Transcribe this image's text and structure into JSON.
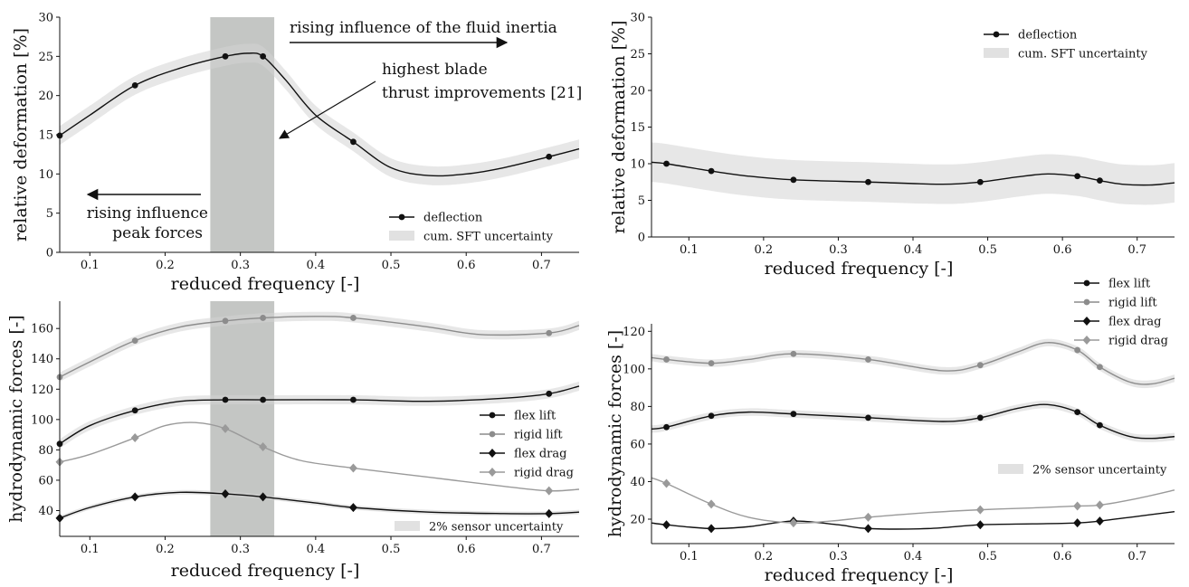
{
  "chart_data": [
    {
      "id": "top-left",
      "type": "line",
      "xlabel": "reduced frequency [-]",
      "ylabel": "relative deformation [%]",
      "xlim": [
        0.06,
        0.75
      ],
      "ylim": [
        0,
        30
      ],
      "xticks": [
        0.1,
        0.2,
        0.3,
        0.4,
        0.5,
        0.6,
        0.7
      ],
      "yticks": [
        0,
        5,
        10,
        15,
        20,
        25,
        30
      ],
      "legend_position": "lower-right",
      "shaded_region_x": [
        0.26,
        0.345
      ],
      "series": [
        {
          "name": "deflection",
          "style": "circle",
          "color": "#111111",
          "band": 1.2,
          "points": [
            [
              0.06,
              14.9
            ],
            [
              0.16,
              21.3
            ],
            [
              0.28,
              25.0
            ],
            [
              0.33,
              25.0
            ],
            [
              0.45,
              14.1
            ],
            [
              0.71,
              12.2
            ]
          ],
          "curve": [
            [
              0.06,
              14.9
            ],
            [
              0.1,
              17.5
            ],
            [
              0.16,
              21.3
            ],
            [
              0.22,
              23.5
            ],
            [
              0.28,
              25.0
            ],
            [
              0.31,
              25.4
            ],
            [
              0.33,
              25.0
            ],
            [
              0.36,
              22.0
            ],
            [
              0.4,
              17.5
            ],
            [
              0.45,
              14.1
            ],
            [
              0.5,
              10.8
            ],
            [
              0.55,
              9.8
            ],
            [
              0.6,
              10.0
            ],
            [
              0.65,
              10.8
            ],
            [
              0.71,
              12.2
            ],
            [
              0.75,
              13.2
            ]
          ]
        }
      ],
      "band_label": "cum. SFT uncertainty",
      "annotations": [
        {
          "id": "fluid-inertia",
          "text": "rising influence of the fluid inertia"
        },
        {
          "id": "blade-thrust",
          "lines": [
            "highest blade",
            "thrust improvements [21]"
          ]
        },
        {
          "id": "peak-forces",
          "lines": [
            "rising influence",
            "peak forces"
          ]
        }
      ]
    },
    {
      "id": "top-right",
      "type": "line",
      "xlabel": "reduced frequency [-]",
      "ylabel": "relative deformation [%]",
      "xlim": [
        0.05,
        0.75
      ],
      "ylim": [
        0,
        30
      ],
      "xticks": [
        0.1,
        0.2,
        0.3,
        0.4,
        0.5,
        0.6,
        0.7
      ],
      "yticks": [
        0,
        5,
        10,
        15,
        20,
        25,
        30
      ],
      "legend_position": "upper-right",
      "series": [
        {
          "name": "deflection",
          "style": "circle",
          "color": "#111111",
          "band": 2.7,
          "points": [
            [
              0.07,
              10.0
            ],
            [
              0.13,
              9.0
            ],
            [
              0.24,
              7.8
            ],
            [
              0.34,
              7.5
            ],
            [
              0.49,
              7.5
            ],
            [
              0.62,
              8.3
            ],
            [
              0.65,
              7.7
            ]
          ],
          "curve": [
            [
              0.05,
              10.2
            ],
            [
              0.07,
              10.0
            ],
            [
              0.13,
              9.0
            ],
            [
              0.18,
              8.3
            ],
            [
              0.24,
              7.8
            ],
            [
              0.34,
              7.5
            ],
            [
              0.44,
              7.2
            ],
            [
              0.49,
              7.5
            ],
            [
              0.54,
              8.2
            ],
            [
              0.58,
              8.6
            ],
            [
              0.62,
              8.3
            ],
            [
              0.65,
              7.7
            ],
            [
              0.68,
              7.2
            ],
            [
              0.72,
              7.1
            ],
            [
              0.75,
              7.4
            ]
          ]
        }
      ],
      "band_label": "cum. SFT uncertainty"
    },
    {
      "id": "bottom-left",
      "type": "line",
      "xlabel": "reduced frequency [-]",
      "ylabel": "hydrodynamic forces [-]",
      "xlim": [
        0.06,
        0.75
      ],
      "ylim": [
        23,
        178
      ],
      "xticks": [
        0.1,
        0.2,
        0.3,
        0.4,
        0.5,
        0.6,
        0.7
      ],
      "yticks": [
        40,
        60,
        80,
        100,
        120,
        140,
        160
      ],
      "legend_position": "right",
      "shaded_region_x": [
        0.26,
        0.345
      ],
      "series": [
        {
          "name": "flex lift",
          "style": "circle",
          "color": "#111111",
          "band": 3,
          "points": [
            [
              0.06,
              84
            ],
            [
              0.16,
              106
            ],
            [
              0.28,
              113
            ],
            [
              0.33,
              113
            ],
            [
              0.45,
              113
            ],
            [
              0.71,
              117
            ]
          ],
          "curve": [
            [
              0.06,
              84
            ],
            [
              0.1,
              96
            ],
            [
              0.16,
              106
            ],
            [
              0.22,
              112
            ],
            [
              0.28,
              113
            ],
            [
              0.33,
              113
            ],
            [
              0.45,
              113
            ],
            [
              0.55,
              112
            ],
            [
              0.65,
              114
            ],
            [
              0.71,
              117
            ],
            [
              0.75,
              122
            ]
          ]
        },
        {
          "name": "rigid lift",
          "style": "circle",
          "color": "#8c8c8c",
          "band": 3,
          "points": [
            [
              0.06,
              128
            ],
            [
              0.16,
              152
            ],
            [
              0.28,
              165
            ],
            [
              0.33,
              167
            ],
            [
              0.45,
              167
            ],
            [
              0.71,
              157
            ]
          ],
          "curve": [
            [
              0.06,
              128
            ],
            [
              0.1,
              138
            ],
            [
              0.16,
              152
            ],
            [
              0.22,
              161
            ],
            [
              0.28,
              165
            ],
            [
              0.33,
              167
            ],
            [
              0.4,
              168
            ],
            [
              0.45,
              167
            ],
            [
              0.55,
              161
            ],
            [
              0.62,
              156
            ],
            [
              0.71,
              157
            ],
            [
              0.75,
              162
            ]
          ]
        },
        {
          "name": "flex drag",
          "style": "diamond",
          "color": "#111111",
          "band": 1.5,
          "points": [
            [
              0.06,
              35
            ],
            [
              0.16,
              49
            ],
            [
              0.28,
              51
            ],
            [
              0.33,
              49
            ],
            [
              0.45,
              42
            ],
            [
              0.71,
              38
            ]
          ],
          "curve": [
            [
              0.06,
              35
            ],
            [
              0.1,
              42
            ],
            [
              0.16,
              49
            ],
            [
              0.22,
              52
            ],
            [
              0.28,
              51
            ],
            [
              0.33,
              49
            ],
            [
              0.4,
              45
            ],
            [
              0.45,
              42
            ],
            [
              0.55,
              39
            ],
            [
              0.65,
              38
            ],
            [
              0.71,
              38
            ],
            [
              0.75,
              39
            ]
          ]
        },
        {
          "name": "rigid drag",
          "style": "diamond",
          "color": "#9a9a9a",
          "band": 0,
          "points": [
            [
              0.06,
              72
            ],
            [
              0.16,
              88
            ],
            [
              0.28,
              94
            ],
            [
              0.33,
              82
            ],
            [
              0.45,
              68
            ],
            [
              0.71,
              53
            ]
          ],
          "curve": [
            [
              0.06,
              72
            ],
            [
              0.1,
              77
            ],
            [
              0.16,
              88
            ],
            [
              0.2,
              96
            ],
            [
              0.24,
              98
            ],
            [
              0.28,
              94
            ],
            [
              0.33,
              82
            ],
            [
              0.38,
              73
            ],
            [
              0.45,
              68
            ],
            [
              0.55,
              62
            ],
            [
              0.65,
              56
            ],
            [
              0.71,
              53
            ],
            [
              0.75,
              54
            ]
          ]
        }
      ],
      "band_label": "2% sensor uncertainty"
    },
    {
      "id": "bottom-right",
      "type": "line",
      "xlabel": "reduced frequency [-]",
      "ylabel": "hydrodynamic forces [-]",
      "xlim": [
        0.05,
        0.75
      ],
      "ylim": [
        7,
        124
      ],
      "xticks": [
        0.1,
        0.2,
        0.3,
        0.4,
        0.5,
        0.6,
        0.7
      ],
      "yticks": [
        20,
        40,
        60,
        80,
        100,
        120
      ],
      "legend_position": "outside-top-right",
      "series": [
        {
          "name": "flex lift",
          "style": "circle",
          "color": "#111111",
          "band": 2,
          "points": [
            [
              0.07,
              69
            ],
            [
              0.13,
              75
            ],
            [
              0.24,
              76
            ],
            [
              0.34,
              74
            ],
            [
              0.49,
              74
            ],
            [
              0.62,
              77
            ],
            [
              0.65,
              70
            ]
          ],
          "curve": [
            [
              0.05,
              68
            ],
            [
              0.07,
              69
            ],
            [
              0.13,
              75
            ],
            [
              0.18,
              77
            ],
            [
              0.24,
              76
            ],
            [
              0.34,
              74
            ],
            [
              0.44,
              72
            ],
            [
              0.49,
              74
            ],
            [
              0.54,
              79
            ],
            [
              0.58,
              81
            ],
            [
              0.62,
              77
            ],
            [
              0.65,
              70
            ],
            [
              0.69,
              64
            ],
            [
              0.72,
              63
            ],
            [
              0.75,
              64
            ]
          ]
        },
        {
          "name": "rigid lift",
          "style": "circle",
          "color": "#8c8c8c",
          "band": 2,
          "points": [
            [
              0.07,
              105
            ],
            [
              0.13,
              103
            ],
            [
              0.24,
              108
            ],
            [
              0.34,
              105
            ],
            [
              0.49,
              102
            ],
            [
              0.62,
              110
            ],
            [
              0.65,
              101
            ]
          ],
          "curve": [
            [
              0.05,
              106
            ],
            [
              0.07,
              105
            ],
            [
              0.13,
              103
            ],
            [
              0.18,
              105
            ],
            [
              0.24,
              108
            ],
            [
              0.34,
              105
            ],
            [
              0.44,
              99
            ],
            [
              0.49,
              102
            ],
            [
              0.54,
              109
            ],
            [
              0.58,
              114
            ],
            [
              0.62,
              110
            ],
            [
              0.65,
              101
            ],
            [
              0.69,
              93
            ],
            [
              0.72,
              92
            ],
            [
              0.75,
              95
            ]
          ]
        },
        {
          "name": "flex drag",
          "style": "diamond",
          "color": "#111111",
          "band": 0,
          "points": [
            [
              0.07,
              17
            ],
            [
              0.13,
              15
            ],
            [
              0.24,
              19
            ],
            [
              0.34,
              15
            ],
            [
              0.49,
              17
            ],
            [
              0.62,
              18
            ],
            [
              0.65,
              19
            ]
          ],
          "curve": [
            [
              0.05,
              18
            ],
            [
              0.07,
              17
            ],
            [
              0.13,
              15
            ],
            [
              0.18,
              16
            ],
            [
              0.24,
              19
            ],
            [
              0.3,
              17
            ],
            [
              0.34,
              15
            ],
            [
              0.42,
              15
            ],
            [
              0.49,
              17
            ],
            [
              0.56,
              17.5
            ],
            [
              0.62,
              18
            ],
            [
              0.65,
              19
            ],
            [
              0.7,
              21.5
            ],
            [
              0.75,
              24
            ]
          ]
        },
        {
          "name": "rigid drag",
          "style": "diamond",
          "color": "#9a9a9a",
          "band": 0,
          "points": [
            [
              0.07,
              39
            ],
            [
              0.13,
              28
            ],
            [
              0.24,
              18
            ],
            [
              0.34,
              21
            ],
            [
              0.49,
              25
            ],
            [
              0.62,
              27
            ],
            [
              0.65,
              27.5
            ]
          ],
          "curve": [
            [
              0.05,
              42
            ],
            [
              0.07,
              39
            ],
            [
              0.13,
              28
            ],
            [
              0.18,
              21
            ],
            [
              0.24,
              18
            ],
            [
              0.29,
              19
            ],
            [
              0.34,
              21
            ],
            [
              0.42,
              23.5
            ],
            [
              0.49,
              25
            ],
            [
              0.56,
              26
            ],
            [
              0.62,
              27
            ],
            [
              0.65,
              27.5
            ],
            [
              0.7,
              31
            ],
            [
              0.75,
              35.5
            ]
          ]
        }
      ],
      "band_label": "2% sensor uncertainty"
    }
  ]
}
